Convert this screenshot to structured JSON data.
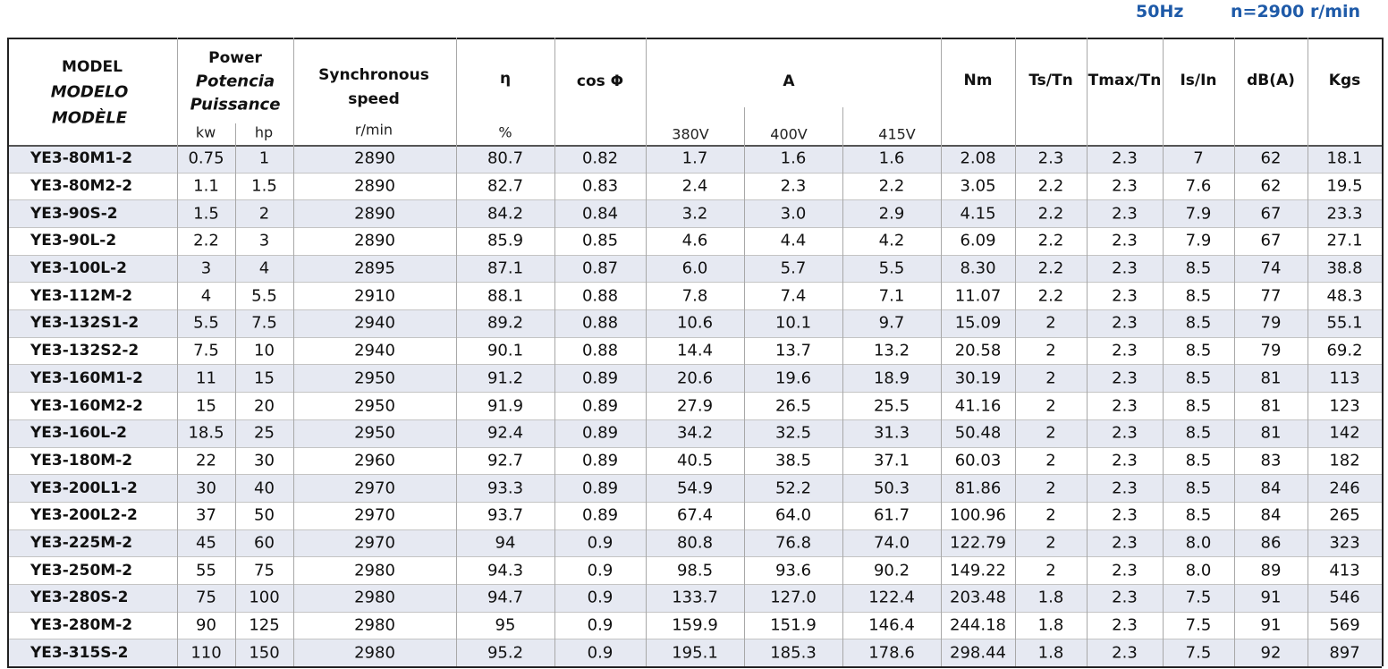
{
  "header": {
    "frequency": "50Hz",
    "speed": "n=2900 r/min"
  },
  "table": {
    "columns": {
      "model": [
        "MODEL",
        "MODELO",
        "MODÈLE"
      ],
      "power": [
        "Power",
        "Potencia",
        "Puissance"
      ],
      "kw": "kw",
      "hp": "hp",
      "speed": [
        "Synchronous",
        "speed"
      ],
      "speed_unit": "r/min",
      "eta": "η",
      "eta_unit": "%",
      "cos": "cos Φ",
      "current": "A",
      "voltages": [
        "380V",
        "400V",
        "415V"
      ],
      "nm": "Nm",
      "ts": "Ts/Tn",
      "tmax": "Tmax/Tn",
      "is": "Is/In",
      "db": "dB(A)",
      "kgs": "Kgs"
    },
    "rows": [
      [
        "YE3-80M1-2",
        "0.75",
        "1",
        "2890",
        "80.7",
        "0.82",
        "1.7",
        "1.6",
        "1.6",
        "2.08",
        "2.3",
        "2.3",
        "7",
        "62",
        "18.1"
      ],
      [
        "YE3-80M2-2",
        "1.1",
        "1.5",
        "2890",
        "82.7",
        "0.83",
        "2.4",
        "2.3",
        "2.2",
        "3.05",
        "2.2",
        "2.3",
        "7.6",
        "62",
        "19.5"
      ],
      [
        "YE3-90S-2",
        "1.5",
        "2",
        "2890",
        "84.2",
        "0.84",
        "3.2",
        "3.0",
        "2.9",
        "4.15",
        "2.2",
        "2.3",
        "7.9",
        "67",
        "23.3"
      ],
      [
        "YE3-90L-2",
        "2.2",
        "3",
        "2890",
        "85.9",
        "0.85",
        "4.6",
        "4.4",
        "4.2",
        "6.09",
        "2.2",
        "2.3",
        "7.9",
        "67",
        "27.1"
      ],
      [
        "YE3-100L-2",
        "3",
        "4",
        "2895",
        "87.1",
        "0.87",
        "6.0",
        "5.7",
        "5.5",
        "8.30",
        "2.2",
        "2.3",
        "8.5",
        "74",
        "38.8"
      ],
      [
        "YE3-112M-2",
        "4",
        "5.5",
        "2910",
        "88.1",
        "0.88",
        "7.8",
        "7.4",
        "7.1",
        "11.07",
        "2.2",
        "2.3",
        "8.5",
        "77",
        "48.3"
      ],
      [
        "YE3-132S1-2",
        "5.5",
        "7.5",
        "2940",
        "89.2",
        "0.88",
        "10.6",
        "10.1",
        "9.7",
        "15.09",
        "2",
        "2.3",
        "8.5",
        "79",
        "55.1"
      ],
      [
        "YE3-132S2-2",
        "7.5",
        "10",
        "2940",
        "90.1",
        "0.88",
        "14.4",
        "13.7",
        "13.2",
        "20.58",
        "2",
        "2.3",
        "8.5",
        "79",
        "69.2"
      ],
      [
        "YE3-160M1-2",
        "11",
        "15",
        "2950",
        "91.2",
        "0.89",
        "20.6",
        "19.6",
        "18.9",
        "30.19",
        "2",
        "2.3",
        "8.5",
        "81",
        "113"
      ],
      [
        "YE3-160M2-2",
        "15",
        "20",
        "2950",
        "91.9",
        "0.89",
        "27.9",
        "26.5",
        "25.5",
        "41.16",
        "2",
        "2.3",
        "8.5",
        "81",
        "123"
      ],
      [
        "YE3-160L-2",
        "18.5",
        "25",
        "2950",
        "92.4",
        "0.89",
        "34.2",
        "32.5",
        "31.3",
        "50.48",
        "2",
        "2.3",
        "8.5",
        "81",
        "142"
      ],
      [
        "YE3-180M-2",
        "22",
        "30",
        "2960",
        "92.7",
        "0.89",
        "40.5",
        "38.5",
        "37.1",
        "60.03",
        "2",
        "2.3",
        "8.5",
        "83",
        "182"
      ],
      [
        "YE3-200L1-2",
        "30",
        "40",
        "2970",
        "93.3",
        "0.89",
        "54.9",
        "52.2",
        "50.3",
        "81.86",
        "2",
        "2.3",
        "8.5",
        "84",
        "246"
      ],
      [
        "YE3-200L2-2",
        "37",
        "50",
        "2970",
        "93.7",
        "0.89",
        "67.4",
        "64.0",
        "61.7",
        "100.96",
        "2",
        "2.3",
        "8.5",
        "84",
        "265"
      ],
      [
        "YE3-225M-2",
        "45",
        "60",
        "2970",
        "94",
        "0.9",
        "80.8",
        "76.8",
        "74.0",
        "122.79",
        "2",
        "2.3",
        "8.0",
        "86",
        "323"
      ],
      [
        "YE3-250M-2",
        "55",
        "75",
        "2980",
        "94.3",
        "0.9",
        "98.5",
        "93.6",
        "90.2",
        "149.22",
        "2",
        "2.3",
        "8.0",
        "89",
        "413"
      ],
      [
        "YE3-280S-2",
        "75",
        "100",
        "2980",
        "94.7",
        "0.9",
        "133.7",
        "127.0",
        "122.4",
        "203.48",
        "1.8",
        "2.3",
        "7.5",
        "91",
        "546"
      ],
      [
        "YE3-280M-2",
        "90",
        "125",
        "2980",
        "95",
        "0.9",
        "159.9",
        "151.9",
        "146.4",
        "244.18",
        "1.8",
        "2.3",
        "7.5",
        "91",
        "569"
      ],
      [
        "YE3-315S-2",
        "110",
        "150",
        "2980",
        "95.2",
        "0.9",
        "195.1",
        "185.3",
        "178.6",
        "298.44",
        "1.8",
        "2.3",
        "7.5",
        "92",
        "897"
      ]
    ]
  }
}
